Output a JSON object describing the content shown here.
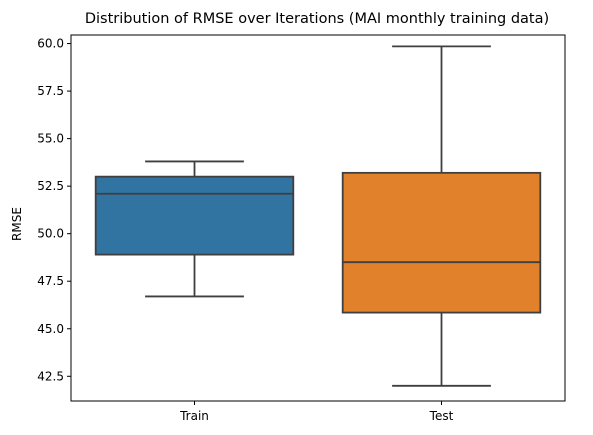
{
  "chart_data": {
    "type": "box",
    "title": "Distribution of RMSE over Iterations (MAI monthly training data)",
    "xlabel": "",
    "ylabel": "RMSE",
    "ylim": [
      41.2,
      60.45
    ],
    "yticks": [
      42.5,
      45.0,
      47.5,
      50.0,
      52.5,
      55.0,
      57.5,
      60.0
    ],
    "ytick_labels": [
      "42.5",
      "45.0",
      "47.5",
      "50.0",
      "52.5",
      "55.0",
      "57.5",
      "60.0"
    ],
    "grid": false,
    "categories": [
      "Train",
      "Test"
    ],
    "boxes": [
      {
        "label": "Train",
        "whisker_low": 46.7,
        "q1": 48.9,
        "median": 52.1,
        "q3": 53.0,
        "whisker_high": 53.8,
        "color": "#3274a1"
      },
      {
        "label": "Test",
        "whisker_low": 42.0,
        "q1": 45.85,
        "median": 48.5,
        "q3": 53.2,
        "whisker_high": 59.85,
        "color": "#e1812c"
      }
    ]
  }
}
